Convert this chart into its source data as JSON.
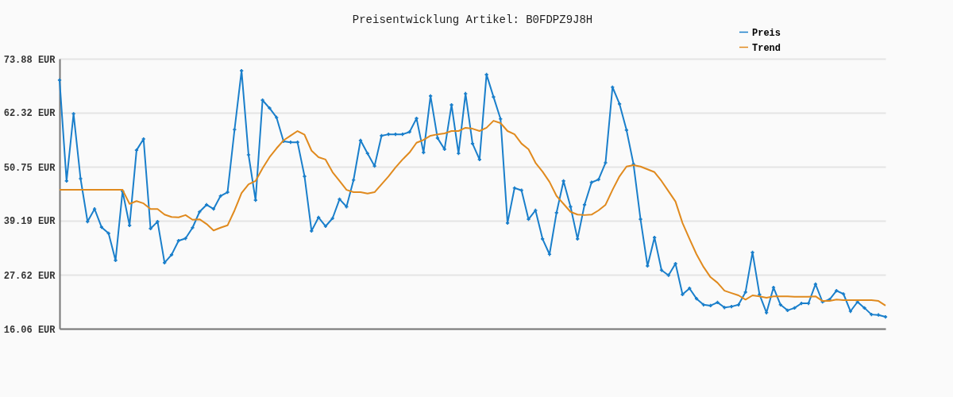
{
  "chart_data": {
    "type": "line",
    "title": "Preisentwicklung Artikel: B0FDPZ9J8H",
    "categories": [
      null,
      null,
      null,
      null,
      null,
      null,
      null,
      null,
      null,
      null,
      null,
      null,
      null,
      null,
      null,
      null,
      null,
      null,
      null,
      null,
      null,
      null,
      null,
      null,
      null,
      null,
      null,
      null,
      null,
      null,
      null,
      null,
      null,
      null,
      null,
      null,
      null,
      null,
      null,
      null,
      null,
      null,
      null,
      null,
      null,
      null,
      null,
      null,
      null,
      null,
      null,
      null,
      null,
      null,
      null,
      null,
      null,
      null,
      null,
      null,
      null,
      null,
      null,
      null,
      null,
      null,
      null,
      null,
      null,
      null,
      null,
      null,
      null,
      null,
      null,
      null,
      null,
      null,
      null,
      null,
      null,
      null,
      null,
      null,
      null,
      null,
      null,
      null,
      null,
      null,
      null,
      null,
      null,
      null,
      null,
      null,
      null,
      null,
      null,
      null,
      null,
      null,
      null,
      null,
      null,
      null,
      null,
      null,
      null,
      null,
      null,
      null,
      null,
      null,
      null,
      null,
      null,
      null,
      null
    ],
    "series": [
      {
        "name": "Preis",
        "color": "#1a7fcb",
        "marker": "cross",
        "values": [
          69.3,
          47.7,
          62.1,
          48.2,
          39.0,
          41.7,
          37.8,
          36.5,
          30.7,
          45.5,
          38.2,
          54.3,
          56.7,
          37.5,
          39.0,
          30.2,
          31.9,
          34.9,
          35.4,
          37.7,
          41.1,
          42.6,
          41.7,
          44.5,
          45.3,
          58.7,
          71.3,
          53.3,
          43.6,
          65.0,
          63.3,
          61.3,
          56.2,
          56.0,
          56.0,
          48.7,
          37.0,
          39.9,
          38.0,
          39.7,
          43.8,
          42.2,
          47.9,
          56.4,
          53.6,
          50.9,
          57.4,
          57.7,
          57.7,
          57.7,
          58.2,
          61.1,
          53.8,
          65.9,
          56.9,
          54.5,
          64.0,
          53.6,
          66.4,
          55.7,
          52.3,
          70.5,
          65.7,
          61.0,
          38.7,
          46.2,
          45.7,
          39.5,
          41.4,
          35.3,
          32.0,
          40.9,
          47.7,
          42.2,
          35.3,
          42.6,
          47.4,
          48.0,
          51.6,
          67.8,
          64.2,
          58.6,
          51.3,
          39.5,
          29.5,
          35.6,
          28.6,
          27.5,
          30.0,
          23.4,
          24.7,
          22.5,
          21.2,
          21.0,
          21.7,
          20.6,
          20.8,
          21.2,
          23.9,
          32.4,
          23.4,
          19.5,
          24.9,
          21.2,
          20.0,
          20.5,
          21.5,
          21.5,
          25.6,
          21.8,
          22.3,
          24.2,
          23.5,
          19.8,
          21.8,
          20.5,
          19.1,
          19.0,
          18.6
        ]
      },
      {
        "name": "Trend",
        "color": "#e08a1e",
        "marker": "none",
        "values": [
          45.8,
          45.8,
          45.8,
          45.8,
          45.8,
          45.8,
          45.8,
          45.8,
          45.8,
          45.8,
          42.8,
          43.4,
          42.9,
          41.7,
          41.7,
          40.5,
          40.0,
          39.9,
          40.4,
          39.4,
          39.5,
          38.5,
          37.1,
          37.7,
          38.2,
          41.4,
          45.1,
          47.0,
          47.7,
          50.4,
          52.8,
          54.7,
          56.4,
          57.4,
          58.4,
          57.6,
          54.2,
          52.8,
          52.3,
          49.6,
          47.7,
          45.8,
          45.3,
          45.3,
          45.0,
          45.3,
          47.0,
          48.7,
          50.6,
          52.3,
          53.8,
          55.9,
          56.5,
          57.4,
          57.7,
          57.9,
          58.4,
          58.4,
          59.1,
          58.9,
          58.4,
          59.1,
          60.6,
          60.1,
          58.4,
          57.7,
          55.7,
          54.5,
          51.6,
          49.7,
          47.5,
          44.5,
          42.8,
          41.1,
          40.5,
          40.4,
          40.5,
          41.4,
          42.6,
          45.8,
          48.7,
          50.8,
          51.1,
          50.8,
          50.2,
          49.6,
          47.7,
          45.5,
          43.3,
          38.7,
          35.3,
          32.0,
          29.3,
          27.1,
          25.9,
          24.2,
          23.7,
          23.2,
          22.3,
          23.2,
          23.0,
          22.7,
          23.0,
          23.0,
          23.0,
          22.9,
          22.9,
          22.9,
          23.0,
          22.0,
          22.0,
          22.3,
          22.2,
          22.2,
          22.2,
          22.2,
          22.2,
          22.0,
          21.0
        ]
      }
    ],
    "ylim": [
      16.06,
      73.88
    ],
    "yticks": [
      {
        "value": 16.06,
        "label": "16.06 EUR"
      },
      {
        "value": 27.62,
        "label": "27.62 EUR"
      },
      {
        "value": 39.19,
        "label": "39.19 EUR"
      },
      {
        "value": 50.75,
        "label": "50.75 EUR"
      },
      {
        "value": 62.32,
        "label": "62.32 EUR"
      },
      {
        "value": 73.88,
        "label": "73.88 EUR"
      }
    ],
    "grid": "y",
    "legend": "top right",
    "tick_labels": "y",
    "line_style": "solid"
  }
}
